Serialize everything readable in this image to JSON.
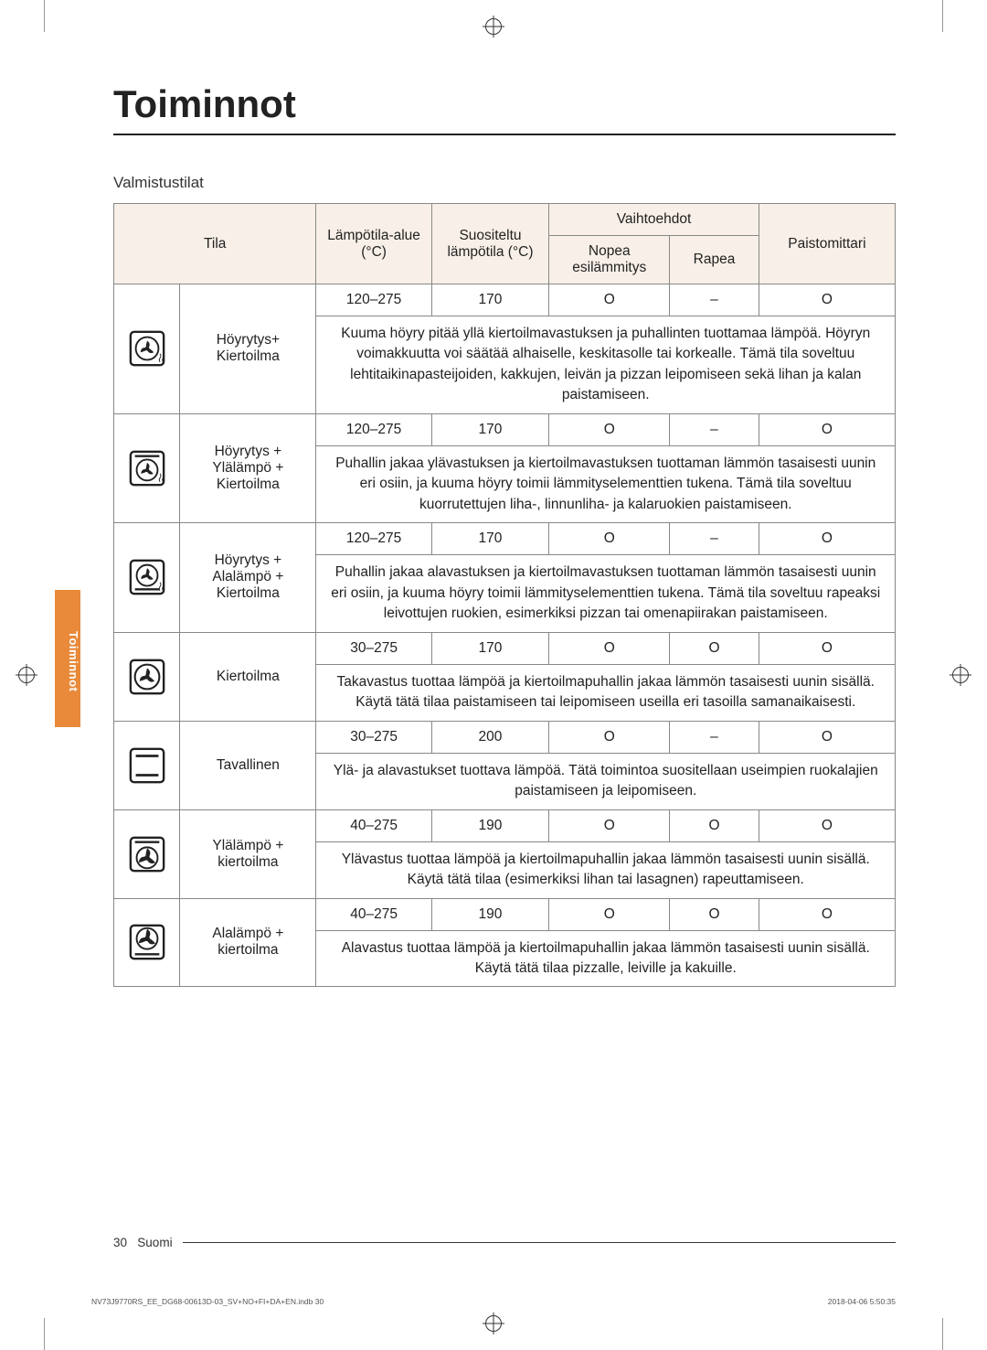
{
  "title": "Toiminnot",
  "subtitle": "Valmistustilat",
  "side_tab": "Toiminnot",
  "headers": {
    "mode": "Tila",
    "temp_range": "Lämpötila-alue (°C)",
    "recommended": "Suositeltu lämpötila (°C)",
    "options": "Vaihtoehdot",
    "option_a": "Nopea esilämmitys",
    "option_b": "Rapea",
    "meat_probe": "Paistomittari"
  },
  "rows": [
    {
      "name": "Höyrytys+ Kiertoilma",
      "range": "120–275",
      "recommended": "170",
      "opt_a": "O",
      "opt_b": "–",
      "probe": "O",
      "desc": "Kuuma höyry pitää yllä kiertoilmavastuksen ja puhallinten tuottamaa lämpöä. Höyryn voimakkuutta voi säätää alhaiselle, keskitasolle tai korkealle. Tämä tila soveltuu lehtitaikinapasteijoiden, kakkujen, leivän ja pizzan leipomiseen sekä lihan ja kalan paistamiseen."
    },
    {
      "name": "Höyrytys + Ylälämpö + Kiertoilma",
      "range": "120–275",
      "recommended": "170",
      "opt_a": "O",
      "opt_b": "–",
      "probe": "O",
      "desc": "Puhallin jakaa ylävastuksen ja kiertoilmavastuksen tuottaman lämmön tasaisesti uunin eri osiin, ja kuuma höyry toimii lämmityselementtien tukena. Tämä tila soveltuu kuorrutettujen liha-, linnunliha- ja kalaruokien paistamiseen."
    },
    {
      "name": "Höyrytys + Alalämpö + Kiertoilma",
      "range": "120–275",
      "recommended": "170",
      "opt_a": "O",
      "opt_b": "–",
      "probe": "O",
      "desc": "Puhallin jakaa alavastuksen ja kiertoilmavastuksen tuottaman lämmön tasaisesti uunin eri osiin, ja kuuma höyry toimii lämmityselementtien tukena. Tämä tila soveltuu rapeaksi leivottujen ruokien, esimerkiksi pizzan tai omenapiirakan paistamiseen."
    },
    {
      "name": "Kiertoilma",
      "range": "30–275",
      "recommended": "170",
      "opt_a": "O",
      "opt_b": "O",
      "probe": "O",
      "desc": "Takavastus tuottaa lämpöä ja kiertoilmapuhallin jakaa lämmön tasaisesti uunin sisällä. Käytä tätä tilaa paistamiseen tai leipomiseen useilla eri tasoilla samanaikaisesti."
    },
    {
      "name": "Tavallinen",
      "range": "30–275",
      "recommended": "200",
      "opt_a": "O",
      "opt_b": "–",
      "probe": "O",
      "desc": "Ylä- ja alavastukset tuottava lämpöä. Tätä toimintoa suositellaan useimpien ruokalajien paistamiseen ja leipomiseen."
    },
    {
      "name": "Ylälämpö + kiertoilma",
      "range": "40–275",
      "recommended": "190",
      "opt_a": "O",
      "opt_b": "O",
      "probe": "O",
      "desc": "Ylävastus tuottaa lämpöä ja kiertoilmapuhallin jakaa lämmön tasaisesti uunin sisällä. Käytä tätä tilaa (esimerkiksi lihan tai lasagnen) rapeuttamiseen."
    },
    {
      "name": "Alalämpö + kiertoilma",
      "range": "40–275",
      "recommended": "190",
      "opt_a": "O",
      "opt_b": "O",
      "probe": "O",
      "desc": "Alavastus tuottaa lämpöä ja kiertoilmapuhallin jakaa lämmön tasaisesti uunin sisällä. Käytä tätä tilaa pizzalle, leiville ja kakuille."
    }
  ],
  "footer": {
    "page": "30",
    "lang": "Suomi"
  },
  "imprint": {
    "left": "NV73J9770RS_EE_DG68-00613D-03_SV+NO+FI+DA+EN.indb   30",
    "right": "2018-04-06   5:50:35"
  }
}
